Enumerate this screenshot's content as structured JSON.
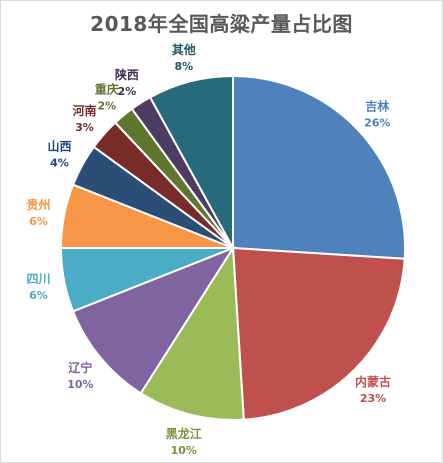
{
  "chart_data": {
    "type": "pie",
    "title": "2018年全国高粱产量占比图",
    "slices": [
      {
        "label": "吉林",
        "value": 26,
        "pct_text": "26%",
        "color": "#4f81bd",
        "label_color": "#4f81bd"
      },
      {
        "label": "内蒙古",
        "value": 23,
        "pct_text": "23%",
        "color": "#c0504d",
        "label_color": "#c0504d"
      },
      {
        "label": "黑龙江",
        "value": 10,
        "pct_text": "10%",
        "color": "#9bbb59",
        "label_color": "#77933c"
      },
      {
        "label": "辽宁",
        "value": 10,
        "pct_text": "10%",
        "color": "#8064a2",
        "label_color": "#8064a2"
      },
      {
        "label": "四川",
        "value": 6,
        "pct_text": "6%",
        "color": "#4bacc6",
        "label_color": "#4bacc6"
      },
      {
        "label": "贵州",
        "value": 6,
        "pct_text": "6%",
        "color": "#f79646",
        "label_color": "#f79646"
      },
      {
        "label": "山西",
        "value": 4,
        "pct_text": "4%",
        "color": "#2c4d75",
        "label_color": "#1f497d"
      },
      {
        "label": "河南",
        "value": 3,
        "pct_text": "3%",
        "color": "#772c2a",
        "label_color": "#772c2a"
      },
      {
        "label": "重庆",
        "value": 2,
        "pct_text": "2%",
        "color": "#5f7530",
        "label_color": "#5f7530"
      },
      {
        "label": "陕西",
        "value": 2,
        "pct_text": "2%",
        "color": "#4d3b62",
        "label_color": "#403152"
      },
      {
        "label": "其他",
        "value": 8,
        "pct_text": "8%",
        "color": "#276a7c",
        "label_color": "#215968"
      }
    ],
    "start_angle": "12 o'clock",
    "direction": "clockwise",
    "legend": "none"
  }
}
